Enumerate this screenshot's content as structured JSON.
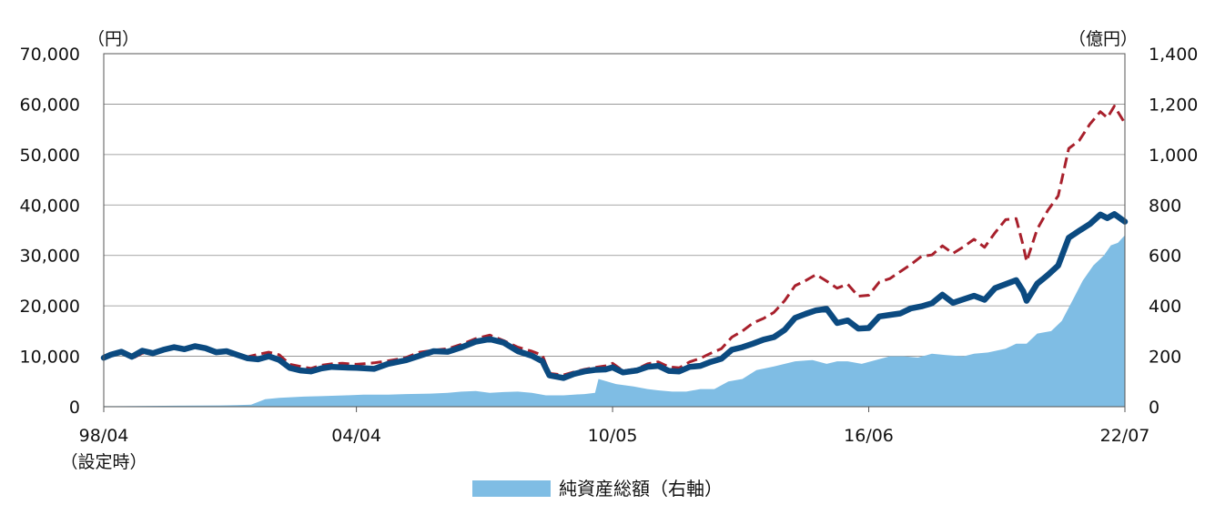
{
  "chart_data": {
    "type": "line",
    "y_left": {
      "unit_label": "（円）",
      "min": 0,
      "max": 70000,
      "ticks": [
        0,
        10000,
        20000,
        30000,
        40000,
        50000,
        60000,
        70000
      ],
      "tick_labels": [
        "0",
        "10,000",
        "20,000",
        "30,000",
        "40,000",
        "50,000",
        "60,000",
        "70,000"
      ]
    },
    "y_right": {
      "unit_label": "（億円）",
      "min": 0,
      "max": 1400,
      "ticks": [
        0,
        200,
        400,
        600,
        800,
        1000,
        1200,
        1400
      ],
      "tick_labels": [
        "0",
        "200",
        "400",
        "600",
        "800",
        "1,000",
        "1,200",
        "1,400"
      ]
    },
    "x_axis": {
      "start": "1998-04",
      "end": "2022-07",
      "ticks": [
        {
          "date": "1998-04",
          "label": "98/04",
          "sublabel": "（設定時）"
        },
        {
          "date": "2004-04",
          "label": "04/04",
          "sublabel": ""
        },
        {
          "date": "2010-05",
          "label": "10/05",
          "sublabel": ""
        },
        {
          "date": "2016-06",
          "label": "16/06",
          "sublabel": ""
        },
        {
          "date": "2022-07",
          "label": "22/07",
          "sublabel": ""
        }
      ]
    },
    "grid": true,
    "legend": {
      "placement": "bottom-center",
      "entries": [
        {
          "label": "純資産総額（右軸）",
          "color": "#7fbde4",
          "kind": "area"
        }
      ]
    },
    "series": [
      {
        "kind": "area",
        "axis": "right",
        "color": "#7fbde4",
        "x": [
          "1998-04",
          "1999-01",
          "2000-01",
          "2001-01",
          "2001-06",
          "2001-10",
          "2002-02",
          "2002-06",
          "2003-01",
          "2003-06",
          "2004-01",
          "2004-06",
          "2005-01",
          "2005-06",
          "2006-01",
          "2006-06",
          "2006-10",
          "2007-02",
          "2007-06",
          "2007-10",
          "2008-02",
          "2008-06",
          "2008-10",
          "2009-03",
          "2009-06",
          "2009-09",
          "2009-12",
          "2010-01",
          "2010-06",
          "2010-11",
          "2011-03",
          "2011-06",
          "2011-10",
          "2012-02",
          "2012-06",
          "2012-10",
          "2013-02",
          "2013-06",
          "2013-10",
          "2014-03",
          "2014-09",
          "2015-02",
          "2015-06",
          "2015-09",
          "2015-12",
          "2016-04",
          "2016-08",
          "2016-12",
          "2017-04",
          "2017-08",
          "2017-12",
          "2018-04",
          "2018-09",
          "2018-12",
          "2019-04",
          "2019-09",
          "2019-12",
          "2020-03",
          "2020-06",
          "2020-10",
          "2021-01",
          "2021-04",
          "2021-07",
          "2021-10",
          "2022-01",
          "2022-03",
          "2022-05",
          "2022-07"
        ],
        "values": [
          2,
          3,
          4,
          5,
          6,
          8,
          30,
          35,
          40,
          42,
          45,
          48,
          48,
          50,
          52,
          55,
          60,
          62,
          55,
          58,
          60,
          55,
          45,
          45,
          48,
          50,
          55,
          110,
          90,
          80,
          70,
          65,
          60,
          60,
          70,
          70,
          100,
          110,
          145,
          160,
          180,
          185,
          170,
          180,
          180,
          170,
          185,
          200,
          200,
          195,
          210,
          205,
          200,
          210,
          215,
          230,
          250,
          250,
          290,
          300,
          340,
          420,
          500,
          560,
          600,
          640,
          650,
          680
        ]
      },
      {
        "kind": "line",
        "axis": "left",
        "style": "solid",
        "color": "#0b4a80",
        "x": [
          "1998-04",
          "1998-06",
          "1998-09",
          "1998-12",
          "1999-03",
          "1999-06",
          "1999-09",
          "1999-12",
          "2000-03",
          "2000-06",
          "2000-09",
          "2000-12",
          "2001-03",
          "2001-06",
          "2001-09",
          "2001-12",
          "2002-03",
          "2002-06",
          "2002-09",
          "2002-12",
          "2003-03",
          "2003-06",
          "2003-09",
          "2003-12",
          "2004-04",
          "2004-09",
          "2005-01",
          "2005-06",
          "2005-10",
          "2006-02",
          "2006-06",
          "2006-10",
          "2007-02",
          "2007-06",
          "2007-10",
          "2008-02",
          "2008-06",
          "2008-09",
          "2008-11",
          "2009-03",
          "2009-06",
          "2009-09",
          "2009-12",
          "2010-03",
          "2010-05",
          "2010-08",
          "2010-12",
          "2011-03",
          "2011-06",
          "2011-09",
          "2011-12",
          "2012-03",
          "2012-06",
          "2012-09",
          "2012-12",
          "2013-03",
          "2013-06",
          "2013-09",
          "2013-12",
          "2014-03",
          "2014-06",
          "2014-09",
          "2014-12",
          "2015-03",
          "2015-06",
          "2015-09",
          "2015-12",
          "2016-03",
          "2016-06",
          "2016-09",
          "2016-12",
          "2017-03",
          "2017-06",
          "2017-09",
          "2017-12",
          "2018-03",
          "2018-06",
          "2018-09",
          "2018-12",
          "2019-03",
          "2019-06",
          "2019-09",
          "2019-12",
          "2020-02",
          "2020-03",
          "2020-06",
          "2020-09",
          "2020-12",
          "2021-03",
          "2021-06",
          "2021-09",
          "2021-12",
          "2022-02",
          "2022-04",
          "2022-07"
        ],
        "values": [
          9700,
          10300,
          10900,
          9900,
          11100,
          10600,
          11300,
          11800,
          11400,
          12000,
          11600,
          10800,
          11000,
          10300,
          9600,
          9400,
          10000,
          9300,
          7700,
          7200,
          7000,
          7600,
          7900,
          7800,
          7700,
          7500,
          8500,
          9200,
          10100,
          11000,
          10900,
          11800,
          12900,
          13400,
          12700,
          11000,
          10100,
          9000,
          6200,
          5700,
          6500,
          7000,
          7300,
          7400,
          7800,
          6800,
          7200,
          7900,
          8100,
          7100,
          7000,
          7900,
          8100,
          8900,
          9500,
          11300,
          11800,
          12500,
          13300,
          13800,
          15200,
          17600,
          18400,
          19100,
          19400,
          16600,
          17100,
          15500,
          15600,
          17900,
          18200,
          18500,
          19500,
          19900,
          20500,
          22200,
          20600,
          21300,
          22000,
          21200,
          23500,
          24300,
          25100,
          22900,
          21000,
          24400,
          26100,
          28000,
          33500,
          34900,
          36200,
          38100,
          37400,
          38200,
          36700
        ]
      },
      {
        "kind": "line",
        "axis": "left",
        "style": "dashed",
        "color": "#a8202c",
        "x": [
          "1998-04",
          "1998-06",
          "1998-09",
          "1998-12",
          "1999-03",
          "1999-06",
          "1999-09",
          "1999-12",
          "2000-03",
          "2000-06",
          "2000-09",
          "2000-12",
          "2001-03",
          "2001-06",
          "2001-09",
          "2001-12",
          "2002-03",
          "2002-06",
          "2002-09",
          "2002-12",
          "2003-03",
          "2003-06",
          "2003-09",
          "2003-12",
          "2004-04",
          "2004-09",
          "2005-01",
          "2005-06",
          "2005-10",
          "2006-02",
          "2006-06",
          "2006-10",
          "2007-02",
          "2007-06",
          "2007-10",
          "2008-02",
          "2008-06",
          "2008-09",
          "2008-11",
          "2009-03",
          "2009-06",
          "2009-09",
          "2009-12",
          "2010-03",
          "2010-05",
          "2010-08",
          "2010-12",
          "2011-03",
          "2011-06",
          "2011-09",
          "2011-12",
          "2012-03",
          "2012-06",
          "2012-09",
          "2012-12",
          "2013-03",
          "2013-06",
          "2013-09",
          "2013-12",
          "2014-03",
          "2014-06",
          "2014-09",
          "2014-12",
          "2015-03",
          "2015-06",
          "2015-09",
          "2015-12",
          "2016-03",
          "2016-06",
          "2016-09",
          "2016-12",
          "2017-03",
          "2017-06",
          "2017-09",
          "2017-12",
          "2018-03",
          "2018-06",
          "2018-09",
          "2018-12",
          "2019-03",
          "2019-06",
          "2019-09",
          "2019-12",
          "2020-02",
          "2020-03",
          "2020-06",
          "2020-09",
          "2020-12",
          "2021-03",
          "2021-06",
          "2021-09",
          "2021-12",
          "2022-02",
          "2022-04",
          "2022-07"
        ],
        "values": [
          10000,
          10200,
          10800,
          9500,
          10600,
          10700,
          11300,
          11500,
          11400,
          11900,
          11600,
          10900,
          10800,
          10500,
          9900,
          10400,
          10800,
          10300,
          8400,
          8000,
          7600,
          8200,
          8500,
          8600,
          8400,
          8700,
          9100,
          9700,
          10800,
          11200,
          11500,
          12400,
          13500,
          14200,
          13100,
          11800,
          11000,
          10200,
          6600,
          6300,
          6900,
          7400,
          7800,
          8100,
          8600,
          7100,
          7500,
          8500,
          8900,
          7900,
          7700,
          8900,
          9600,
          10600,
          11500,
          13800,
          15000,
          16600,
          17500,
          18700,
          21000,
          24000,
          25000,
          26200,
          24900,
          23500,
          24300,
          21900,
          22100,
          24700,
          25400,
          26800,
          28200,
          29800,
          30100,
          31900,
          30400,
          31700,
          33200,
          31600,
          34500,
          37100,
          37300,
          32000,
          28800,
          35200,
          38900,
          41800,
          51200,
          52800,
          56000,
          58500,
          57300,
          59600,
          56200
        ]
      }
    ]
  }
}
